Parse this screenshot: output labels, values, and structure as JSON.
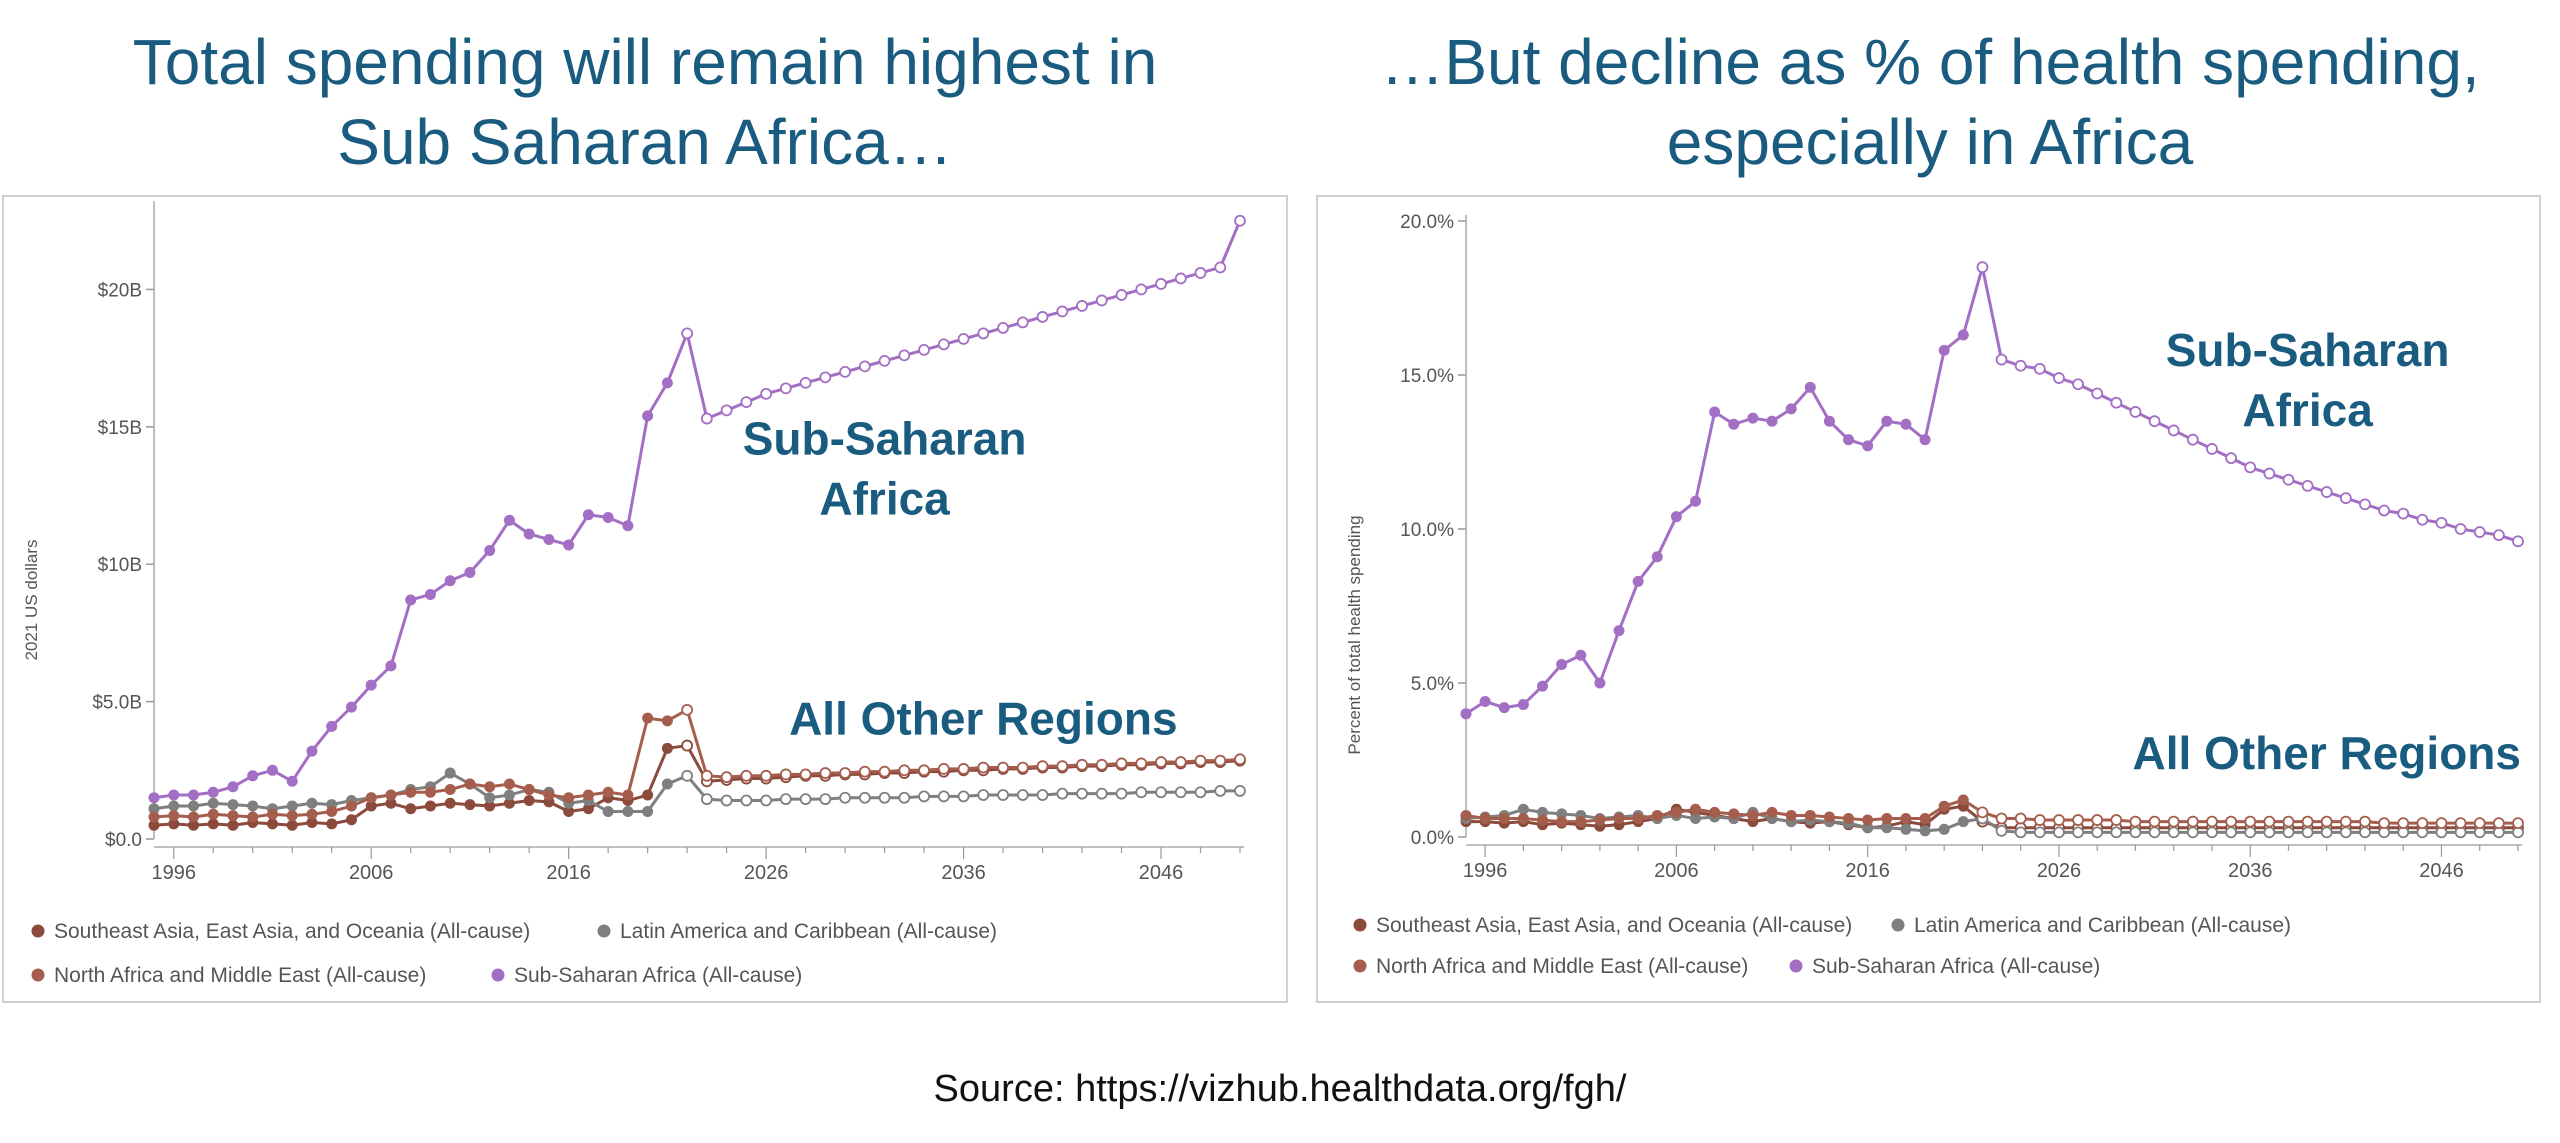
{
  "headlines": {
    "left": [
      "Total spending will remain highest in",
      "Sub Saharan Africa…"
    ],
    "right": [
      "…But decline as % of health spending,",
      "especially in Africa"
    ]
  },
  "source": "Source: https://vizhub.healthdata.org/fgh/",
  "colors": {
    "headline": "#1a5b80",
    "annotation": "#1a5b80",
    "ssa": "#a26fc4",
    "seao": "#8c4a3d",
    "nme": "#a55e4d",
    "lac": "#7f7f7f"
  },
  "chart_data": [
    {
      "type": "line",
      "title": "",
      "xlabel": "",
      "ylabel": "2021 US dollars",
      "x_ticks": [
        "1996",
        "2006",
        "2016",
        "2026",
        "2036",
        "2046"
      ],
      "y_ticks": [
        "$0.0",
        "$5.0B",
        "$10B",
        "$15B",
        "$20B"
      ],
      "ylim": [
        0,
        23
      ],
      "xlim": [
        1995,
        2050
      ],
      "unit": "billion 2021 US dollars",
      "forecast_start": 2022,
      "grid": false,
      "legend_position": "bottom",
      "annotations": [
        {
          "lines": [
            "Sub-Saharan",
            "Africa"
          ],
          "x": 2032,
          "y": 14.0
        },
        {
          "lines": [
            "All Other Regions"
          ],
          "x": 2037,
          "y": 3.8
        }
      ],
      "series": [
        {
          "name": "Southeast Asia, East Asia, and Oceania (All-cause)",
          "color_key": "seao",
          "x": [
            1995,
            1996,
            1997,
            1998,
            1999,
            2000,
            2001,
            2002,
            2003,
            2004,
            2005,
            2006,
            2007,
            2008,
            2009,
            2010,
            2011,
            2012,
            2013,
            2014,
            2015,
            2016,
            2017,
            2018,
            2019,
            2020,
            2021,
            2022,
            2023,
            2024,
            2025,
            2026,
            2027,
            2028,
            2029,
            2030,
            2031,
            2032,
            2033,
            2034,
            2035,
            2036,
            2037,
            2038,
            2039,
            2040,
            2041,
            2042,
            2043,
            2044,
            2045,
            2046,
            2047,
            2048,
            2049,
            2050
          ],
          "y": [
            0.5,
            0.55,
            0.5,
            0.55,
            0.5,
            0.6,
            0.55,
            0.5,
            0.6,
            0.55,
            0.7,
            1.2,
            1.3,
            1.1,
            1.2,
            1.3,
            1.25,
            1.2,
            1.3,
            1.4,
            1.35,
            1.0,
            1.1,
            1.5,
            1.4,
            1.6,
            3.3,
            3.4,
            2.1,
            2.15,
            2.2,
            2.2,
            2.25,
            2.3,
            2.3,
            2.35,
            2.35,
            2.4,
            2.4,
            2.45,
            2.45,
            2.5,
            2.5,
            2.55,
            2.55,
            2.6,
            2.6,
            2.65,
            2.65,
            2.7,
            2.7,
            2.75,
            2.75,
            2.8,
            2.8,
            2.85
          ]
        },
        {
          "name": "Latin America and Caribbean (All-cause)",
          "color_key": "lac",
          "x": [
            1995,
            1996,
            1997,
            1998,
            1999,
            2000,
            2001,
            2002,
            2003,
            2004,
            2005,
            2006,
            2007,
            2008,
            2009,
            2010,
            2011,
            2012,
            2013,
            2014,
            2015,
            2016,
            2017,
            2018,
            2019,
            2020,
            2021,
            2022,
            2023,
            2024,
            2025,
            2026,
            2027,
            2028,
            2029,
            2030,
            2031,
            2032,
            2033,
            2034,
            2035,
            2036,
            2037,
            2038,
            2039,
            2040,
            2041,
            2042,
            2043,
            2044,
            2045,
            2046,
            2047,
            2048,
            2049,
            2050
          ],
          "y": [
            1.1,
            1.2,
            1.2,
            1.3,
            1.25,
            1.2,
            1.1,
            1.2,
            1.3,
            1.25,
            1.4,
            1.5,
            1.6,
            1.8,
            1.9,
            2.4,
            2.0,
            1.5,
            1.6,
            1.8,
            1.7,
            1.3,
            1.4,
            1.0,
            1.0,
            1.0,
            2.0,
            2.3,
            1.45,
            1.4,
            1.4,
            1.4,
            1.45,
            1.45,
            1.45,
            1.5,
            1.5,
            1.5,
            1.5,
            1.55,
            1.55,
            1.55,
            1.6,
            1.6,
            1.6,
            1.6,
            1.65,
            1.65,
            1.65,
            1.65,
            1.7,
            1.7,
            1.7,
            1.7,
            1.75,
            1.75
          ]
        },
        {
          "name": "North Africa and Middle East (All-cause)",
          "color_key": "nme",
          "x": [
            1995,
            1996,
            1997,
            1998,
            1999,
            2000,
            2001,
            2002,
            2003,
            2004,
            2005,
            2006,
            2007,
            2008,
            2009,
            2010,
            2011,
            2012,
            2013,
            2014,
            2015,
            2016,
            2017,
            2018,
            2019,
            2020,
            2021,
            2022,
            2023,
            2024,
            2025,
            2026,
            2027,
            2028,
            2029,
            2030,
            2031,
            2032,
            2033,
            2034,
            2035,
            2036,
            2037,
            2038,
            2039,
            2040,
            2041,
            2042,
            2043,
            2044,
            2045,
            2046,
            2047,
            2048,
            2049,
            2050
          ],
          "y": [
            0.8,
            0.85,
            0.8,
            0.9,
            0.85,
            0.8,
            0.9,
            0.85,
            0.9,
            1.0,
            1.2,
            1.5,
            1.6,
            1.7,
            1.7,
            1.8,
            2.0,
            1.9,
            2.0,
            1.8,
            1.6,
            1.5,
            1.6,
            1.7,
            1.6,
            4.4,
            4.3,
            4.7,
            2.3,
            2.25,
            2.3,
            2.3,
            2.35,
            2.35,
            2.4,
            2.4,
            2.45,
            2.45,
            2.5,
            2.5,
            2.55,
            2.55,
            2.6,
            2.6,
            2.6,
            2.65,
            2.65,
            2.7,
            2.7,
            2.75,
            2.75,
            2.8,
            2.8,
            2.85,
            2.85,
            2.9
          ]
        },
        {
          "name": "Sub-Saharan Africa (All-cause)",
          "color_key": "ssa",
          "x": [
            1995,
            1996,
            1997,
            1998,
            1999,
            2000,
            2001,
            2002,
            2003,
            2004,
            2005,
            2006,
            2007,
            2008,
            2009,
            2010,
            2011,
            2012,
            2013,
            2014,
            2015,
            2016,
            2017,
            2018,
            2019,
            2020,
            2021,
            2022,
            2023,
            2024,
            2025,
            2026,
            2027,
            2028,
            2029,
            2030,
            2031,
            2032,
            2033,
            2034,
            2035,
            2036,
            2037,
            2038,
            2039,
            2040,
            2041,
            2042,
            2043,
            2044,
            2045,
            2046,
            2047,
            2048,
            2049,
            2050
          ],
          "y": [
            1.5,
            1.6,
            1.6,
            1.7,
            1.9,
            2.3,
            2.5,
            2.1,
            3.2,
            4.1,
            4.8,
            5.6,
            6.3,
            8.7,
            8.9,
            9.4,
            9.7,
            10.5,
            11.6,
            11.1,
            10.9,
            10.7,
            11.8,
            11.7,
            11.4,
            15.4,
            16.6,
            18.4,
            15.3,
            15.6,
            15.9,
            16.2,
            16.4,
            16.6,
            16.8,
            17.0,
            17.2,
            17.4,
            17.6,
            17.8,
            18.0,
            18.2,
            18.4,
            18.6,
            18.8,
            19.0,
            19.2,
            19.4,
            19.6,
            19.8,
            20.0,
            20.2,
            20.4,
            20.6,
            20.8,
            22.5
          ]
        }
      ]
    },
    {
      "type": "line",
      "title": "",
      "xlabel": "",
      "ylabel": "Percent of total health spending",
      "x_ticks": [
        "1996",
        "2006",
        "2016",
        "2026",
        "2036",
        "2046"
      ],
      "y_ticks": [
        "0.0%",
        "5.0%",
        "10.0%",
        "15.0%",
        "20.0%"
      ],
      "ylim": [
        0,
        20
      ],
      "xlim": [
        1995,
        2050
      ],
      "unit": "percent",
      "forecast_start": 2022,
      "grid": false,
      "legend_position": "bottom",
      "annotations": [
        {
          "lines": [
            "Sub-Saharan",
            "Africa"
          ],
          "x": 2039,
          "y": 15.3
        },
        {
          "lines": [
            "All Other Regions"
          ],
          "x": 2040,
          "y": 2.2
        }
      ],
      "series": [
        {
          "name": "Southeast Asia, East Asia, and Oceania (All-cause)",
          "color_key": "seao",
          "x": [
            1995,
            1996,
            1997,
            1998,
            1999,
            2000,
            2001,
            2002,
            2003,
            2004,
            2005,
            2006,
            2007,
            2008,
            2009,
            2010,
            2011,
            2012,
            2013,
            2014,
            2015,
            2016,
            2017,
            2018,
            2019,
            2020,
            2021,
            2022,
            2023,
            2024,
            2025,
            2026,
            2027,
            2028,
            2029,
            2030,
            2031,
            2032,
            2033,
            2034,
            2035,
            2036,
            2037,
            2038,
            2039,
            2040,
            2041,
            2042,
            2043,
            2044,
            2045,
            2046,
            2047,
            2048,
            2049,
            2050
          ],
          "y": [
            0.5,
            0.5,
            0.45,
            0.5,
            0.4,
            0.45,
            0.4,
            0.35,
            0.4,
            0.5,
            0.6,
            0.9,
            0.8,
            0.7,
            0.6,
            0.5,
            0.6,
            0.5,
            0.45,
            0.5,
            0.4,
            0.3,
            0.35,
            0.5,
            0.4,
            0.9,
            1.0,
            0.5,
            0.3,
            0.3,
            0.3,
            0.3,
            0.3,
            0.3,
            0.3,
            0.3,
            0.3,
            0.3,
            0.3,
            0.3,
            0.3,
            0.3,
            0.3,
            0.3,
            0.3,
            0.3,
            0.3,
            0.3,
            0.3,
            0.3,
            0.3,
            0.3,
            0.3,
            0.3,
            0.3,
            0.3
          ]
        },
        {
          "name": "Latin America and Caribbean (All-cause)",
          "color_key": "lac",
          "x": [
            1995,
            1996,
            1997,
            1998,
            1999,
            2000,
            2001,
            2002,
            2003,
            2004,
            2005,
            2006,
            2007,
            2008,
            2009,
            2010,
            2011,
            2012,
            2013,
            2014,
            2015,
            2016,
            2017,
            2018,
            2019,
            2020,
            2021,
            2022,
            2023,
            2024,
            2025,
            2026,
            2027,
            2028,
            2029,
            2030,
            2031,
            2032,
            2033,
            2034,
            2035,
            2036,
            2037,
            2038,
            2039,
            2040,
            2041,
            2042,
            2043,
            2044,
            2045,
            2046,
            2047,
            2048,
            2049,
            2050
          ],
          "y": [
            0.6,
            0.65,
            0.7,
            0.9,
            0.8,
            0.75,
            0.7,
            0.6,
            0.65,
            0.7,
            0.6,
            0.7,
            0.6,
            0.65,
            0.6,
            0.8,
            0.6,
            0.5,
            0.55,
            0.5,
            0.45,
            0.3,
            0.3,
            0.25,
            0.2,
            0.25,
            0.5,
            0.6,
            0.2,
            0.15,
            0.15,
            0.15,
            0.15,
            0.15,
            0.15,
            0.15,
            0.15,
            0.15,
            0.15,
            0.15,
            0.15,
            0.15,
            0.15,
            0.15,
            0.15,
            0.15,
            0.15,
            0.15,
            0.15,
            0.15,
            0.15,
            0.15,
            0.15,
            0.15,
            0.15,
            0.15
          ]
        },
        {
          "name": "North Africa and Middle East (All-cause)",
          "color_key": "nme",
          "x": [
            1995,
            1996,
            1997,
            1998,
            1999,
            2000,
            2001,
            2002,
            2003,
            2004,
            2005,
            2006,
            2007,
            2008,
            2009,
            2010,
            2011,
            2012,
            2013,
            2014,
            2015,
            2016,
            2017,
            2018,
            2019,
            2020,
            2021,
            2022,
            2023,
            2024,
            2025,
            2026,
            2027,
            2028,
            2029,
            2030,
            2031,
            2032,
            2033,
            2034,
            2035,
            2036,
            2037,
            2038,
            2039,
            2040,
            2041,
            2042,
            2043,
            2044,
            2045,
            2046,
            2047,
            2048,
            2049,
            2050
          ],
          "y": [
            0.7,
            0.6,
            0.6,
            0.6,
            0.55,
            0.5,
            0.5,
            0.55,
            0.6,
            0.6,
            0.7,
            0.8,
            0.9,
            0.8,
            0.75,
            0.7,
            0.8,
            0.7,
            0.7,
            0.65,
            0.6,
            0.55,
            0.6,
            0.6,
            0.6,
            1.0,
            1.2,
            0.8,
            0.6,
            0.6,
            0.55,
            0.55,
            0.55,
            0.55,
            0.55,
            0.5,
            0.5,
            0.5,
            0.5,
            0.5,
            0.5,
            0.5,
            0.5,
            0.5,
            0.5,
            0.5,
            0.5,
            0.5,
            0.45,
            0.45,
            0.45,
            0.45,
            0.45,
            0.45,
            0.45,
            0.45
          ]
        },
        {
          "name": "Sub-Saharan Africa (All-cause)",
          "color_key": "ssa",
          "x": [
            1995,
            1996,
            1997,
            1998,
            1999,
            2000,
            2001,
            2002,
            2003,
            2004,
            2005,
            2006,
            2007,
            2008,
            2009,
            2010,
            2011,
            2012,
            2013,
            2014,
            2015,
            2016,
            2017,
            2018,
            2019,
            2020,
            2021,
            2022,
            2023,
            2024,
            2025,
            2026,
            2027,
            2028,
            2029,
            2030,
            2031,
            2032,
            2033,
            2034,
            2035,
            2036,
            2037,
            2038,
            2039,
            2040,
            2041,
            2042,
            2043,
            2044,
            2045,
            2046,
            2047,
            2048,
            2049,
            2050
          ],
          "y": [
            4.0,
            4.4,
            4.2,
            4.3,
            4.9,
            5.6,
            5.9,
            5.0,
            6.7,
            8.3,
            9.1,
            10.4,
            10.9,
            13.8,
            13.4,
            13.6,
            13.5,
            13.9,
            14.6,
            13.5,
            12.9,
            12.7,
            13.5,
            13.4,
            12.9,
            15.8,
            16.3,
            18.5,
            15.5,
            15.3,
            15.2,
            14.9,
            14.7,
            14.4,
            14.1,
            13.8,
            13.5,
            13.2,
            12.9,
            12.6,
            12.3,
            12.0,
            11.8,
            11.6,
            11.4,
            11.2,
            11.0,
            10.8,
            10.6,
            10.5,
            10.3,
            10.2,
            10.0,
            9.9,
            9.8,
            9.6
          ]
        }
      ]
    }
  ],
  "legend_items": [
    {
      "label": "Southeast Asia, East Asia, and Oceania (All-cause)",
      "color_key": "seao"
    },
    {
      "label": "Latin America and Caribbean (All-cause)",
      "color_key": "lac"
    },
    {
      "label": "North Africa and Middle East (All-cause)",
      "color_key": "nme"
    },
    {
      "label": "Sub-Saharan Africa (All-cause)",
      "color_key": "ssa"
    }
  ]
}
